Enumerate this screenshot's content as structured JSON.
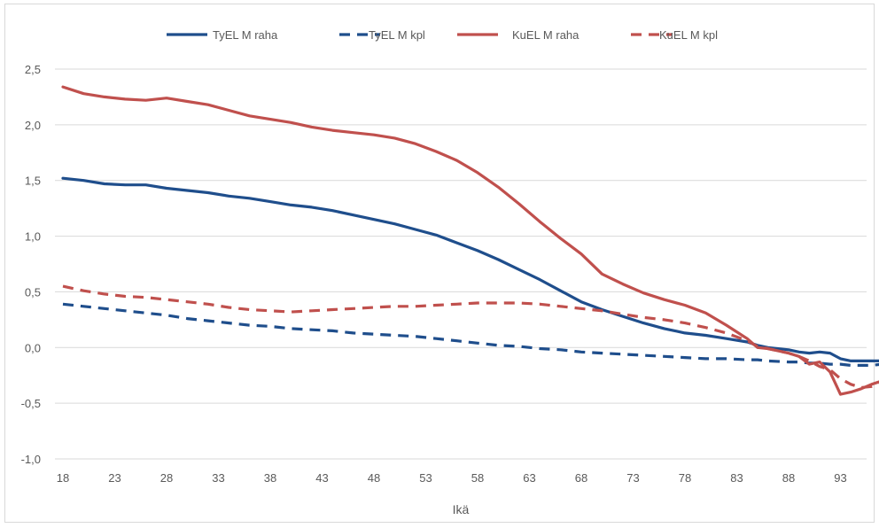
{
  "chart_data": {
    "type": "line",
    "title": "",
    "xlabel": "Ikä",
    "ylabel": "",
    "ylim": [
      -1.0,
      2.5
    ],
    "xlim": [
      18,
      97
    ],
    "grid": true,
    "legend_position": "top",
    "y_ticks": [
      "2,5",
      "2,0",
      "1,5",
      "1,0",
      "0,5",
      "0,0",
      "-0,5",
      "-1,0"
    ],
    "y_tick_values": [
      2.5,
      2.0,
      1.5,
      1.0,
      0.5,
      0.0,
      -0.5,
      -1.0
    ],
    "x_ticks": [
      "18",
      "23",
      "28",
      "33",
      "38",
      "43",
      "48",
      "53",
      "58",
      "63",
      "68",
      "73",
      "78",
      "83",
      "88",
      "93"
    ],
    "x_tick_values": [
      18,
      23,
      28,
      33,
      38,
      43,
      48,
      53,
      58,
      63,
      68,
      73,
      78,
      83,
      88,
      93
    ],
    "x": [
      18,
      20,
      22,
      24,
      26,
      28,
      30,
      32,
      34,
      36,
      38,
      40,
      42,
      44,
      46,
      48,
      50,
      52,
      54,
      56,
      58,
      60,
      62,
      64,
      66,
      68,
      70,
      72,
      74,
      76,
      78,
      80,
      82,
      84,
      85,
      86,
      88,
      89,
      90,
      91,
      92,
      93,
      94,
      95,
      96,
      97
    ],
    "series": [
      {
        "name": "TyEL M raha",
        "color": "#1f4e8c",
        "dash": "solid",
        "values": [
          1.52,
          1.5,
          1.47,
          1.46,
          1.46,
          1.43,
          1.41,
          1.39,
          1.36,
          1.34,
          1.31,
          1.28,
          1.26,
          1.23,
          1.19,
          1.15,
          1.11,
          1.06,
          1.01,
          0.94,
          0.87,
          0.79,
          0.7,
          0.61,
          0.51,
          0.41,
          0.34,
          0.28,
          0.22,
          0.17,
          0.13,
          0.11,
          0.08,
          0.05,
          0.02,
          0.0,
          -0.02,
          -0.04,
          -0.05,
          -0.04,
          -0.05,
          -0.1,
          -0.12,
          -0.12,
          -0.12,
          -0.12
        ]
      },
      {
        "name": "TyEL M kpl",
        "color": "#1f4e8c",
        "dash": "dashed",
        "values": [
          0.39,
          0.37,
          0.35,
          0.33,
          0.31,
          0.29,
          0.26,
          0.24,
          0.22,
          0.2,
          0.19,
          0.17,
          0.16,
          0.15,
          0.13,
          0.12,
          0.11,
          0.1,
          0.08,
          0.06,
          0.04,
          0.02,
          0.01,
          -0.01,
          -0.02,
          -0.04,
          -0.05,
          -0.06,
          -0.07,
          -0.08,
          -0.09,
          -0.1,
          -0.1,
          -0.11,
          -0.11,
          -0.12,
          -0.13,
          -0.13,
          -0.14,
          -0.14,
          -0.15,
          -0.15,
          -0.16,
          -0.16,
          -0.16,
          -0.15
        ]
      },
      {
        "name": "KuEL M raha",
        "color": "#c0504d",
        "dash": "solid",
        "values": [
          2.34,
          2.28,
          2.25,
          2.23,
          2.22,
          2.24,
          2.21,
          2.18,
          2.13,
          2.08,
          2.05,
          2.02,
          1.98,
          1.95,
          1.93,
          1.91,
          1.88,
          1.83,
          1.76,
          1.68,
          1.57,
          1.44,
          1.29,
          1.13,
          0.98,
          0.84,
          0.66,
          0.57,
          0.49,
          0.43,
          0.38,
          0.31,
          0.2,
          0.08,
          0.0,
          -0.01,
          -0.05,
          -0.08,
          -0.15,
          -0.13,
          -0.22,
          -0.42,
          -0.4,
          -0.37,
          -0.33,
          -0.3
        ]
      },
      {
        "name": "KuEL M kpl",
        "color": "#c0504d",
        "dash": "dashed",
        "values": [
          0.55,
          0.51,
          0.48,
          0.46,
          0.45,
          0.43,
          0.41,
          0.39,
          0.36,
          0.34,
          0.33,
          0.32,
          0.33,
          0.34,
          0.35,
          0.36,
          0.37,
          0.37,
          0.38,
          0.39,
          0.4,
          0.4,
          0.4,
          0.39,
          0.37,
          0.35,
          0.33,
          0.3,
          0.27,
          0.25,
          0.22,
          0.18,
          0.13,
          0.06,
          0.01,
          -0.01,
          -0.05,
          -0.08,
          -0.12,
          -0.17,
          -0.2,
          -0.28,
          -0.33,
          -0.36,
          -0.35,
          -0.33
        ]
      }
    ]
  }
}
